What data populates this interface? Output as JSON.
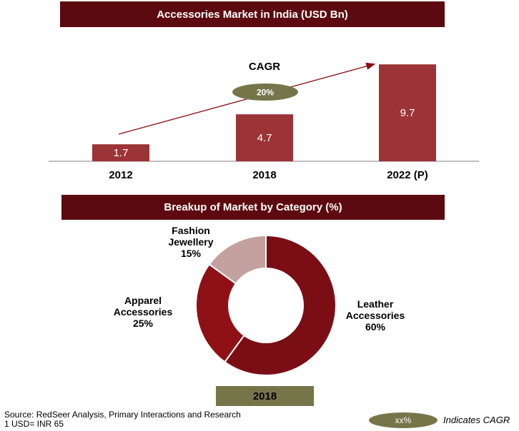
{
  "chart_data": [
    {
      "type": "bar",
      "title": "Accessories Market in India (USD Bn)",
      "categories": [
        "2012",
        "2018",
        "2022 (P)"
      ],
      "values": [
        1.7,
        4.7,
        9.7
      ],
      "ylim": [
        0,
        10
      ],
      "cagr_label": "CAGR",
      "cagr_value": "20%",
      "bar_color": "#9b3337",
      "arrow_color": "#8b0d12",
      "cagr_oval_color": "#76754a"
    },
    {
      "type": "pie",
      "title": "Breakup of Market by Category (%)",
      "subtitle": "2018",
      "slices": [
        {
          "label_lines": [
            "Leather",
            "Accessories",
            "60%"
          ],
          "value": 60,
          "color": "#7a0e14"
        },
        {
          "label_lines": [
            "Apparel",
            "Accessories",
            "25%"
          ],
          "value": 25,
          "color": "#8f1115"
        },
        {
          "label_lines": [
            "Fashion",
            "Jewellery",
            "15%"
          ],
          "value": 15,
          "color": "#c4a09e"
        }
      ]
    }
  ],
  "footer": {
    "source_line1": "Source: RedSeer Analysis, Primary Interactions and Research",
    "source_line2": "1 USD= INR 65",
    "legend_oval": "xx%",
    "legend_text": "Indicates CAGR"
  }
}
